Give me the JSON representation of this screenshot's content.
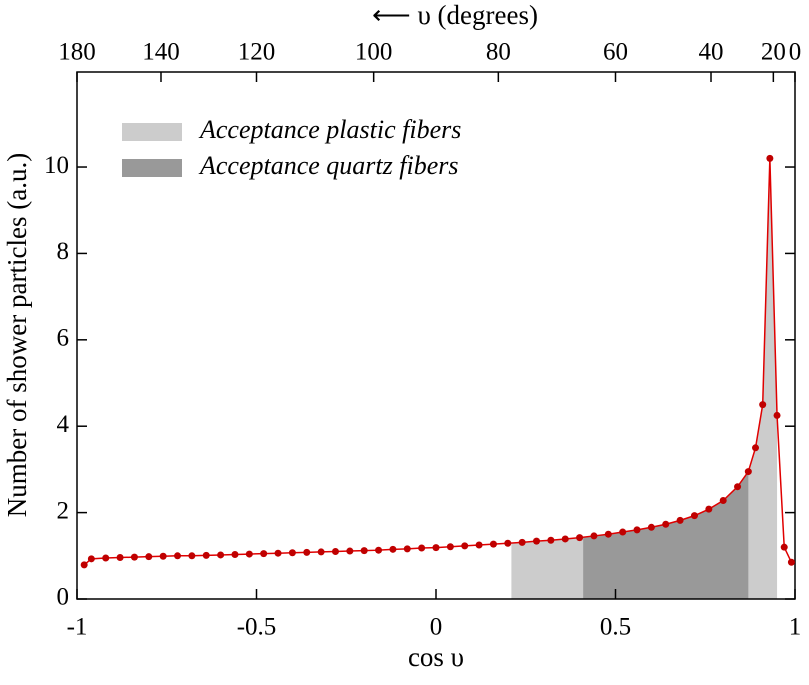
{
  "chart_data": {
    "type": "line",
    "xlabel": "cos υ",
    "ylabel": "Number of shower particles (a.u.)",
    "x2label": "⟵ υ (degrees)",
    "xlim": [
      -1,
      1
    ],
    "ylim": [
      0,
      12.2
    ],
    "xticks": [
      -1,
      -0.5,
      0,
      0.5,
      1
    ],
    "yticks": [
      0,
      2,
      4,
      6,
      8,
      10
    ],
    "x2ticks": [
      180,
      140,
      120,
      100,
      80,
      60,
      40,
      20,
      0
    ],
    "bands": [
      {
        "name": "Acceptance plastic fibers",
        "color": "#cccccc",
        "range": [
          0.21,
          0.95
        ]
      },
      {
        "name": "Acceptance quartz fibers",
        "color": "#999999",
        "range": [
          0.41,
          0.87
        ]
      }
    ],
    "series": [
      {
        "color": "#e00000",
        "marker_color": "#c00000",
        "x": [
          -0.98,
          -0.96,
          -0.92,
          -0.88,
          -0.84,
          -0.8,
          -0.76,
          -0.72,
          -0.68,
          -0.64,
          -0.6,
          -0.56,
          -0.52,
          -0.48,
          -0.44,
          -0.4,
          -0.36,
          -0.32,
          -0.28,
          -0.24,
          -0.2,
          -0.16,
          -0.12,
          -0.08,
          -0.04,
          0,
          0.04,
          0.08,
          0.12,
          0.16,
          0.2,
          0.24,
          0.28,
          0.32,
          0.36,
          0.4,
          0.44,
          0.48,
          0.52,
          0.56,
          0.6,
          0.64,
          0.68,
          0.72,
          0.76,
          0.8,
          0.84,
          0.87,
          0.89,
          0.91,
          0.93,
          0.95,
          0.97,
          0.99
        ],
        "values": [
          0.79,
          0.93,
          0.95,
          0.96,
          0.97,
          0.98,
          0.99,
          1.0,
          1.0,
          1.01,
          1.02,
          1.03,
          1.04,
          1.05,
          1.06,
          1.07,
          1.08,
          1.09,
          1.1,
          1.11,
          1.12,
          1.13,
          1.15,
          1.16,
          1.18,
          1.19,
          1.21,
          1.23,
          1.25,
          1.27,
          1.29,
          1.31,
          1.34,
          1.36,
          1.39,
          1.42,
          1.46,
          1.5,
          1.55,
          1.6,
          1.66,
          1.73,
          1.82,
          1.93,
          2.08,
          2.28,
          2.6,
          2.95,
          3.5,
          4.5,
          10.2,
          4.25,
          1.2,
          0.85
        ]
      }
    ]
  }
}
